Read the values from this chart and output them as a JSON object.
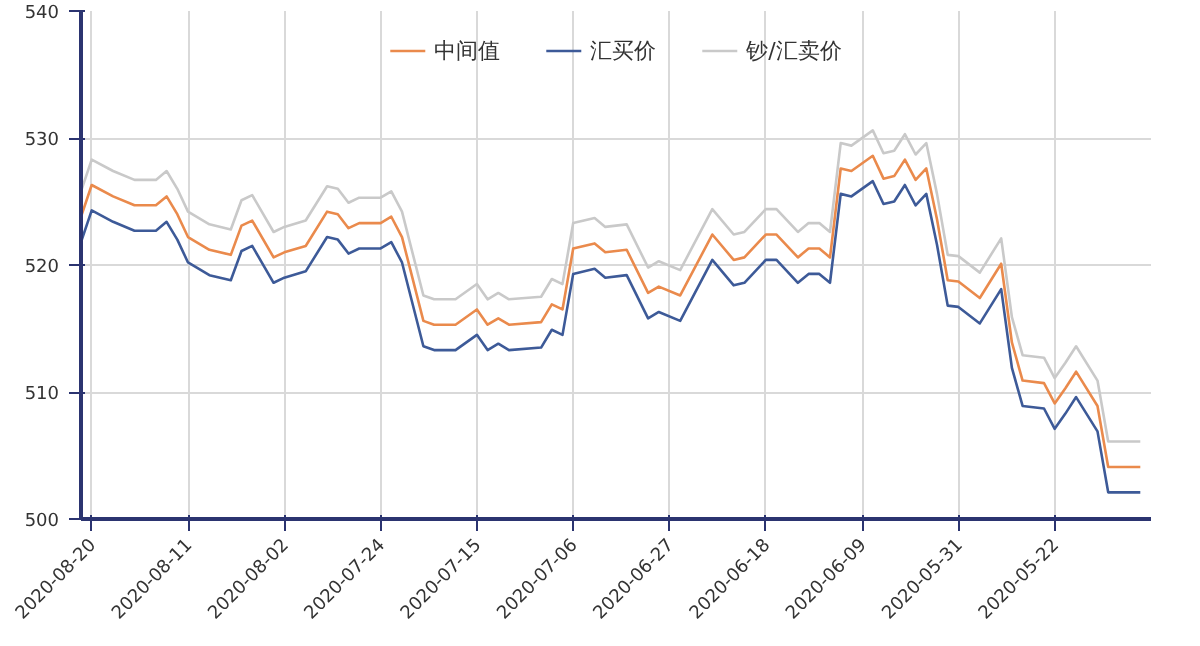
{
  "chart_data": {
    "type": "line",
    "x": [
      "2020-08-21",
      "2020-08-20",
      "2020-08-18",
      "2020-08-16",
      "2020-08-14",
      "2020-08-13",
      "2020-08-12",
      "2020-08-11",
      "2020-08-09",
      "2020-08-07",
      "2020-08-06",
      "2020-08-05",
      "2020-08-03",
      "2020-08-02",
      "2020-07-31",
      "2020-07-29",
      "2020-07-28",
      "2020-07-27",
      "2020-07-26",
      "2020-07-24",
      "2020-07-23",
      "2020-07-22",
      "2020-07-20",
      "2020-07-19",
      "2020-07-17",
      "2020-07-15",
      "2020-07-14",
      "2020-07-13",
      "2020-07-12",
      "2020-07-09",
      "2020-07-08",
      "2020-07-07",
      "2020-07-06",
      "2020-07-04",
      "2020-07-03",
      "2020-07-01",
      "2020-06-29",
      "2020-06-28",
      "2020-06-26",
      "2020-06-23",
      "2020-06-21",
      "2020-06-20",
      "2020-06-18",
      "2020-06-17",
      "2020-06-15",
      "2020-06-14",
      "2020-06-13",
      "2020-06-12",
      "2020-06-11",
      "2020-06-10",
      "2020-06-08",
      "2020-06-07",
      "2020-06-06",
      "2020-06-05",
      "2020-06-04",
      "2020-06-03",
      "2020-06-02",
      "2020-06-01",
      "2020-05-31",
      "2020-05-29",
      "2020-05-27",
      "2020-05-26",
      "2020-05-25",
      "2020-05-23",
      "2020-05-22",
      "2020-05-21",
      "2020-05-20",
      "2020-05-18",
      "2020-05-17",
      "2020-05-14"
    ],
    "series": [
      {
        "name": "中间值",
        "color": "#ea8a4c",
        "values": [
          523.8,
          526.3,
          525.4,
          524.7,
          524.7,
          525.4,
          524.0,
          522.2,
          521.2,
          520.8,
          523.1,
          523.5,
          520.6,
          521.0,
          521.5,
          524.2,
          524.0,
          522.9,
          523.3,
          523.3,
          523.8,
          522.2,
          515.6,
          515.3,
          515.3,
          516.5,
          515.3,
          515.8,
          515.3,
          515.5,
          516.9,
          516.5,
          521.3,
          521.7,
          521.0,
          521.2,
          517.8,
          518.3,
          517.6,
          522.4,
          520.4,
          520.6,
          522.4,
          522.4,
          520.6,
          521.3,
          521.3,
          520.6,
          527.6,
          527.4,
          528.6,
          526.8,
          527.0,
          528.3,
          526.7,
          527.6,
          523.6,
          518.8,
          518.7,
          517.4,
          520.1,
          513.9,
          510.9,
          510.7,
          509.1,
          510.3,
          511.6,
          508.9,
          504.1,
          504.1
        ]
      },
      {
        "name": "汇买价",
        "color": "#3d5a98",
        "values": [
          521.8,
          524.3,
          523.4,
          522.7,
          522.7,
          523.4,
          522.0,
          520.2,
          519.2,
          518.8,
          521.1,
          521.5,
          518.6,
          519.0,
          519.5,
          522.2,
          522.0,
          520.9,
          521.3,
          521.3,
          521.8,
          520.2,
          513.6,
          513.3,
          513.3,
          514.5,
          513.3,
          513.8,
          513.3,
          513.5,
          514.9,
          514.5,
          519.3,
          519.7,
          519.0,
          519.2,
          515.8,
          516.3,
          515.6,
          520.4,
          518.4,
          518.6,
          520.4,
          520.4,
          518.6,
          519.3,
          519.3,
          518.6,
          525.6,
          525.4,
          526.6,
          524.8,
          525.0,
          526.3,
          524.7,
          525.6,
          521.6,
          516.8,
          516.7,
          515.4,
          518.1,
          511.9,
          508.9,
          508.7,
          507.1,
          508.3,
          509.6,
          506.9,
          502.1,
          502.1
        ]
      },
      {
        "name": "钞/汇卖价",
        "color": "#c9c9c9",
        "values": [
          525.8,
          528.3,
          527.4,
          526.7,
          526.7,
          527.4,
          526.0,
          524.2,
          523.2,
          522.8,
          525.1,
          525.5,
          522.6,
          523.0,
          523.5,
          526.2,
          526.0,
          524.9,
          525.3,
          525.3,
          525.8,
          524.2,
          517.6,
          517.3,
          517.3,
          518.5,
          517.3,
          517.8,
          517.3,
          517.5,
          518.9,
          518.5,
          523.3,
          523.7,
          523.0,
          523.2,
          519.8,
          520.3,
          519.6,
          524.4,
          522.4,
          522.6,
          524.4,
          524.4,
          522.6,
          523.3,
          523.3,
          522.6,
          529.6,
          529.4,
          530.6,
          528.8,
          529.0,
          530.3,
          528.7,
          529.6,
          525.6,
          520.8,
          520.7,
          519.4,
          522.1,
          515.9,
          512.9,
          512.7,
          511.1,
          512.3,
          513.6,
          510.9,
          506.1,
          506.1
        ]
      }
    ],
    "xlim": [
      "2020-08-21",
      "2020-05-13"
    ],
    "xticks": [
      "2020-08-20",
      "2020-08-11",
      "2020-08-02",
      "2020-07-24",
      "2020-07-15",
      "2020-07-06",
      "2020-06-27",
      "2020-06-18",
      "2020-06-09",
      "2020-05-31",
      "2020-05-22"
    ],
    "ylim": [
      500,
      540
    ],
    "yticks": [
      500,
      510,
      520,
      530,
      540
    ],
    "grid": true,
    "legend": "top",
    "marker": "none",
    "line_style": "solid"
  }
}
